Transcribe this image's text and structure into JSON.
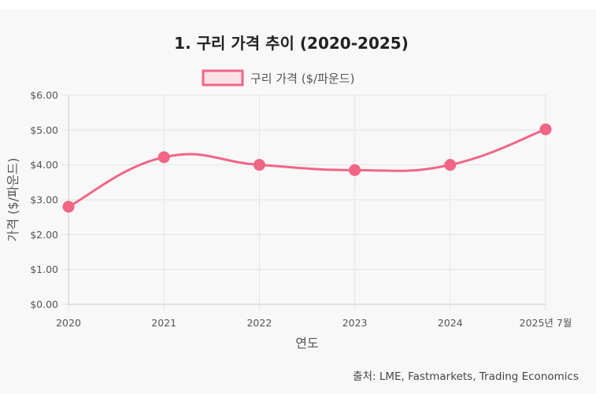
{
  "chart_data": {
    "type": "line",
    "title": "1. 구리 가격 추이 (2020-2025)",
    "categories": [
      "2020",
      "2021",
      "2022",
      "2023",
      "2024",
      "2025년 7월"
    ],
    "series": [
      {
        "name": "구리 가격 ($/파운드)",
        "values": [
          2.8,
          4.22,
          4.0,
          3.85,
          4.0,
          5.02
        ]
      }
    ],
    "xlabel": "연도",
    "ylabel": "가격 ($/파운드)",
    "ylim": [
      0,
      6
    ],
    "yticks": [
      "$0.00",
      "$1.00",
      "$2.00",
      "$3.00",
      "$4.00",
      "$5.00",
      "$6.00"
    ],
    "grid": true,
    "legend": "top",
    "colors": {
      "line": "#f06684",
      "legend_fill": "#fbe1e7",
      "grid": "#e3e3e3",
      "axis": "#cccccc"
    }
  },
  "source": "출처: LME, Fastmarkets, Trading Economics"
}
